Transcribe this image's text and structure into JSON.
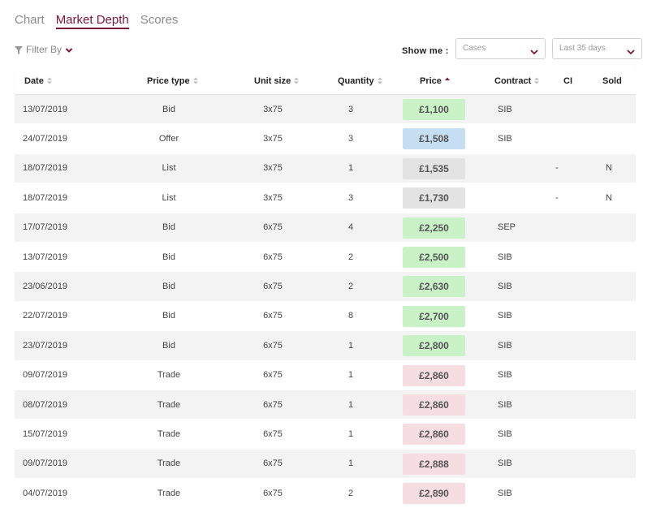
{
  "tabs": [
    {
      "label": "Chart",
      "active": false
    },
    {
      "label": "Market Depth",
      "active": true
    },
    {
      "label": "Scores",
      "active": false
    }
  ],
  "filter": {
    "label": "Filter By"
  },
  "show_me": {
    "label": "Show me :",
    "unit_selected": "Cases",
    "period_selected": "Last 35 days"
  },
  "table": {
    "columns": [
      "Date",
      "Price type",
      "Unit size",
      "Quantity",
      "Price",
      "Contract",
      "CI",
      "Sold"
    ],
    "sorted_column": "Price",
    "sort_direction": "ascending",
    "rows": [
      {
        "date": "13/07/2019",
        "type": "Bid",
        "unit": "3x75",
        "qty": "3",
        "price": "£1,100",
        "contract": "SIB",
        "ci": "",
        "sold": ""
      },
      {
        "date": "24/07/2019",
        "type": "Offer",
        "unit": "3x75",
        "qty": "3",
        "price": "£1,508",
        "contract": "SIB",
        "ci": "",
        "sold": ""
      },
      {
        "date": "18/07/2019",
        "type": "List",
        "unit": "3x75",
        "qty": "1",
        "price": "£1,535",
        "contract": "",
        "ci": "-",
        "sold": "N"
      },
      {
        "date": "18/07/2019",
        "type": "List",
        "unit": "3x75",
        "qty": "3",
        "price": "£1,730",
        "contract": "",
        "ci": "-",
        "sold": "N"
      },
      {
        "date": "17/07/2019",
        "type": "Bid",
        "unit": "6x75",
        "qty": "4",
        "price": "£2,250",
        "contract": "SEP",
        "ci": "",
        "sold": ""
      },
      {
        "date": "13/07/2019",
        "type": "Bid",
        "unit": "6x75",
        "qty": "2",
        "price": "£2,500",
        "contract": "SIB",
        "ci": "",
        "sold": ""
      },
      {
        "date": "23/06/2019",
        "type": "Bid",
        "unit": "6x75",
        "qty": "2",
        "price": "£2,630",
        "contract": "SIB",
        "ci": "",
        "sold": ""
      },
      {
        "date": "22/07/2019",
        "type": "Bid",
        "unit": "6x75",
        "qty": "8",
        "price": "£2,700",
        "contract": "SIB",
        "ci": "",
        "sold": ""
      },
      {
        "date": "23/07/2019",
        "type": "Bid",
        "unit": "6x75",
        "qty": "1",
        "price": "£2,800",
        "contract": "SIB",
        "ci": "",
        "sold": ""
      },
      {
        "date": "09/07/2019",
        "type": "Trade",
        "unit": "6x75",
        "qty": "1",
        "price": "£2,860",
        "contract": "SIB",
        "ci": "",
        "sold": ""
      },
      {
        "date": "08/07/2019",
        "type": "Trade",
        "unit": "6x75",
        "qty": "1",
        "price": "£2,860",
        "contract": "SIB",
        "ci": "",
        "sold": ""
      },
      {
        "date": "15/07/2019",
        "type": "Trade",
        "unit": "6x75",
        "qty": "1",
        "price": "£2,860",
        "contract": "SIB",
        "ci": "",
        "sold": ""
      },
      {
        "date": "09/07/2019",
        "type": "Trade",
        "unit": "6x75",
        "qty": "1",
        "price": "£2,888",
        "contract": "SIB",
        "ci": "",
        "sold": ""
      },
      {
        "date": "04/07/2019",
        "type": "Trade",
        "unit": "6x75",
        "qty": "2",
        "price": "£2,890",
        "contract": "SIB",
        "ci": "",
        "sold": ""
      }
    ]
  },
  "colors": {
    "accent": "#7b1538",
    "bid": "#c9f2c7",
    "offer": "#c5def2",
    "list": "#e3e3e3",
    "trade": "#f6dde1"
  },
  "icons": [
    "filter-icon",
    "chevron-down-icon",
    "sort-icon",
    "sort-asc-icon"
  ]
}
